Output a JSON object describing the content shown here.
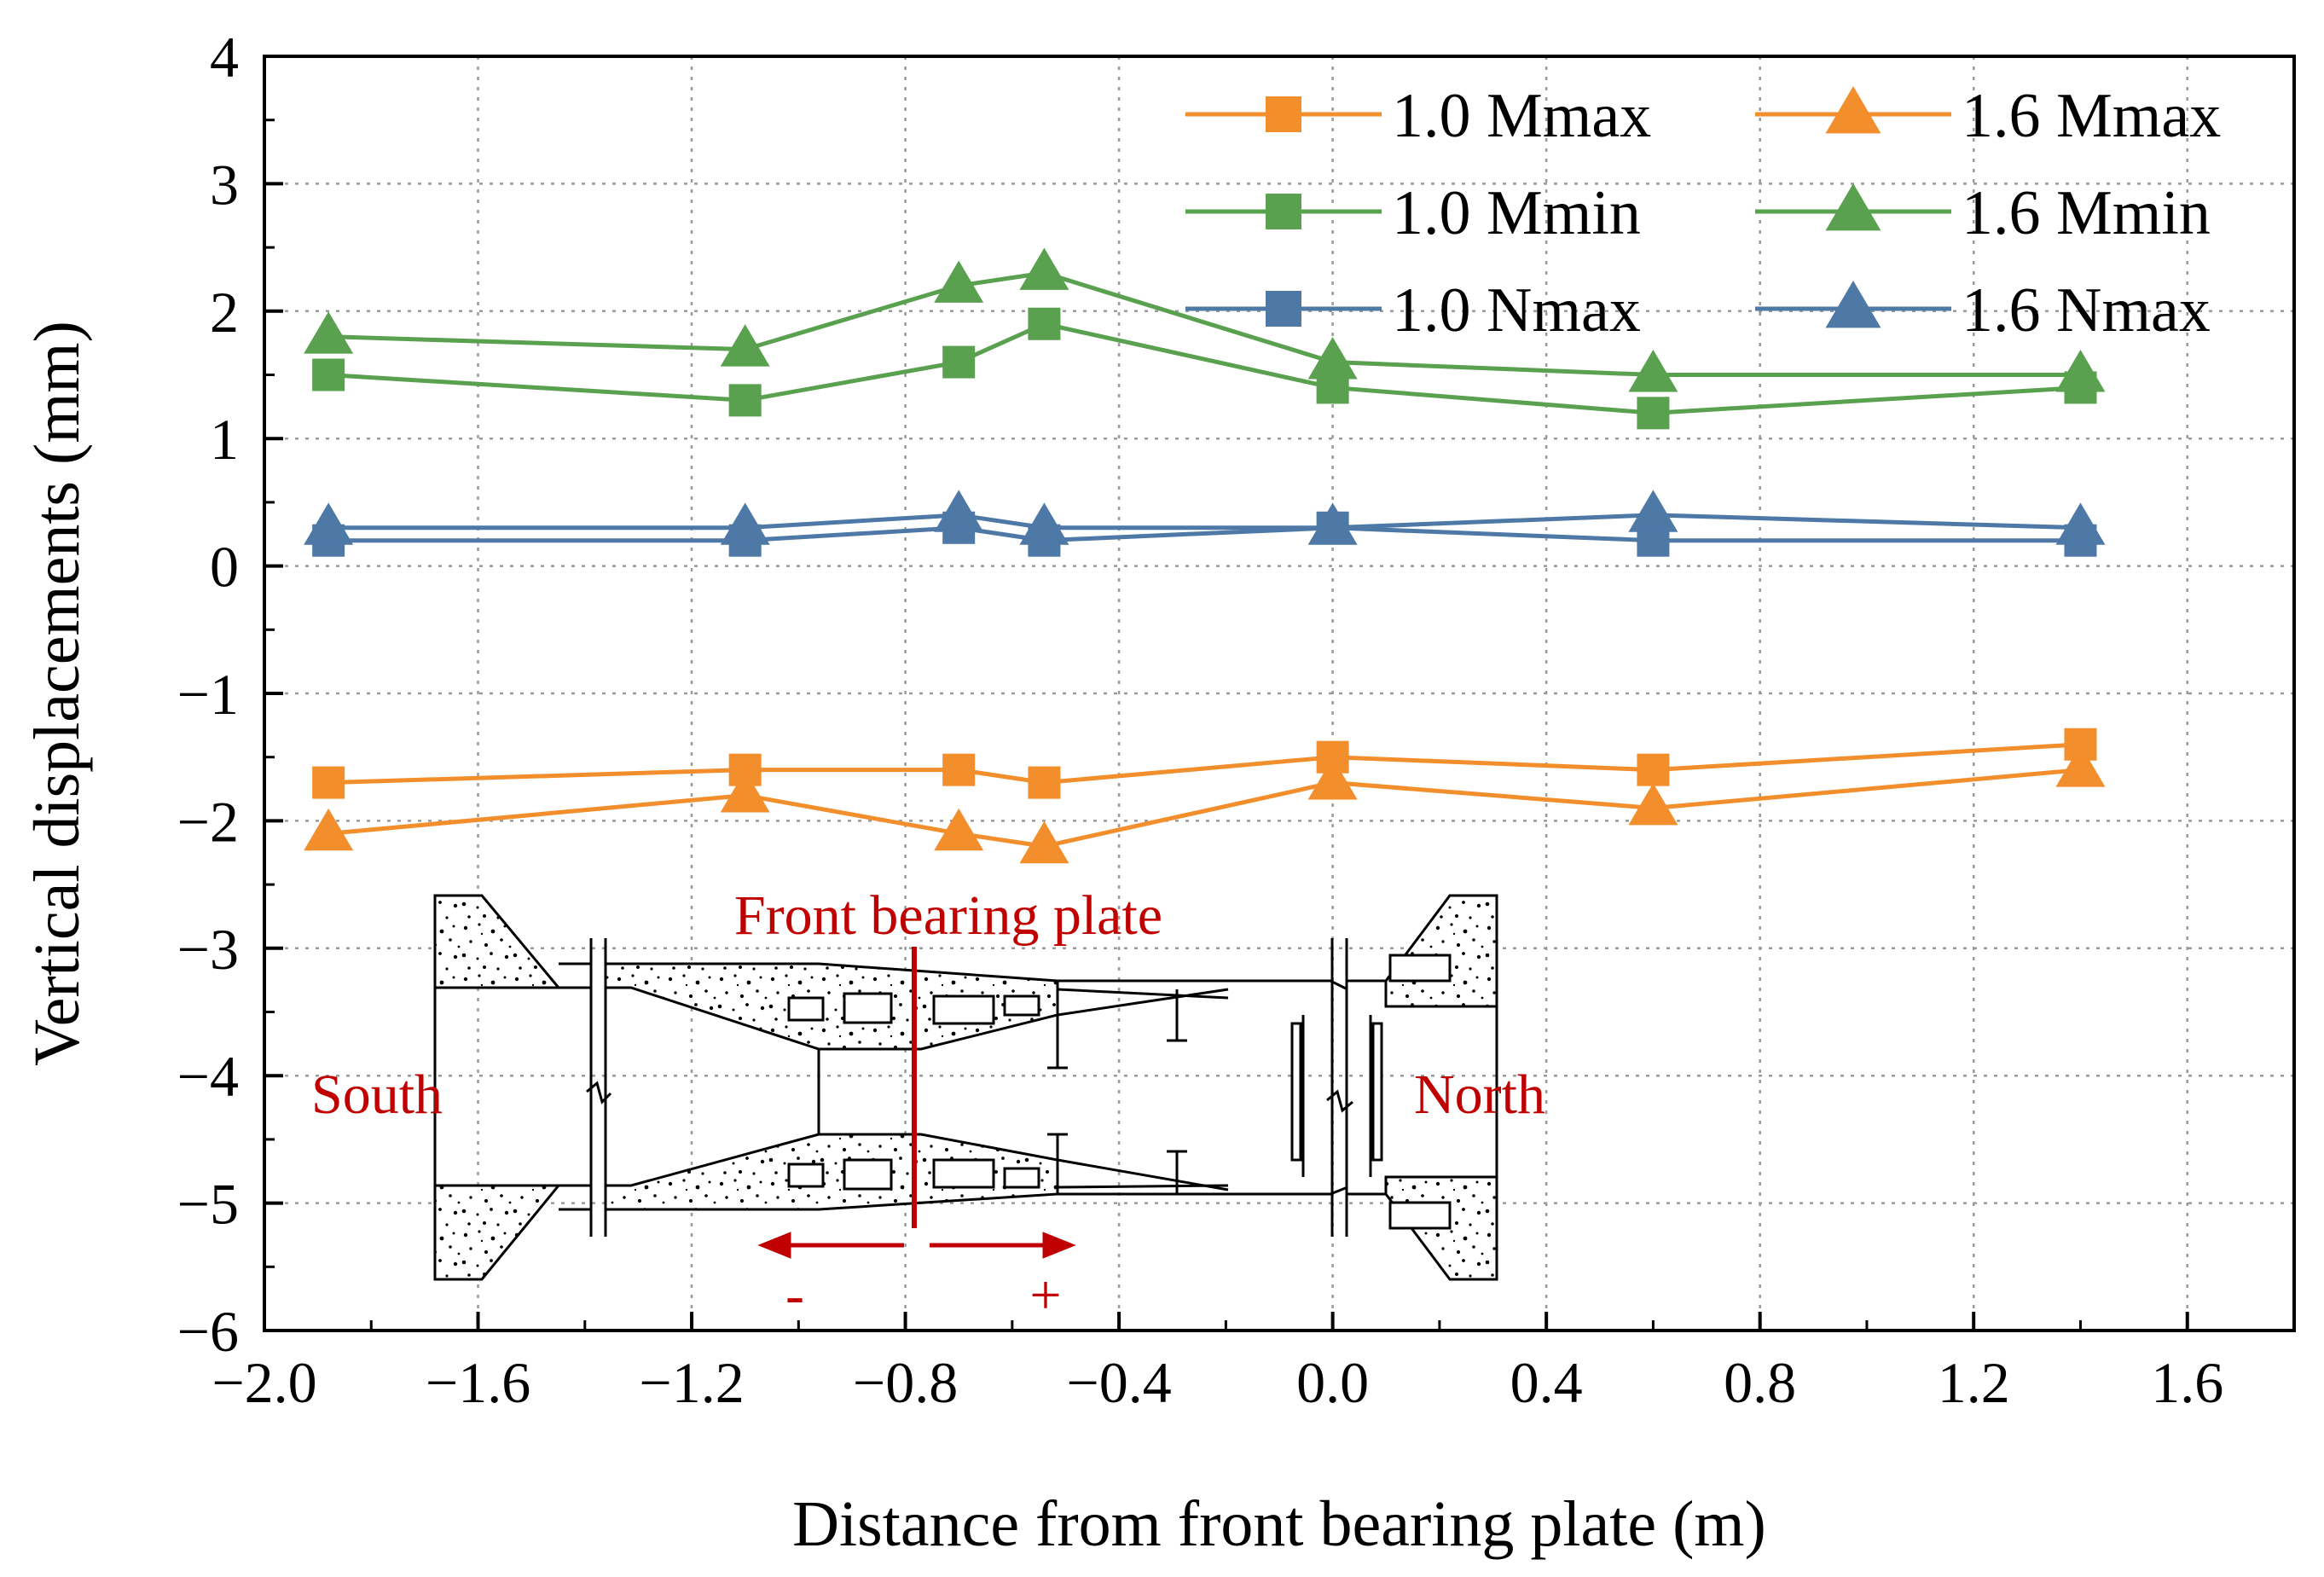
{
  "chart_data": {
    "type": "line",
    "xlabel": "Distance from front bearing plate (m)",
    "ylabel": "Vertical displacements (mm)",
    "xlim": [
      -2.0,
      1.8
    ],
    "ylim": [
      -6,
      4
    ],
    "x_ticks": [
      -2.0,
      -1.6,
      -1.2,
      -0.8,
      -0.4,
      0.0,
      0.4,
      0.8,
      1.2,
      1.6
    ],
    "x_tick_labels": [
      "−2.0",
      "−1.6",
      "−1.2",
      "−0.8",
      "−0.4",
      "0.0",
      "0.4",
      "0.8",
      "1.2",
      "1.6"
    ],
    "y_ticks": [
      -6,
      -5,
      -4,
      -3,
      -2,
      -1,
      0,
      1,
      2,
      3,
      4
    ],
    "y_tick_labels": [
      "−6",
      "−5",
      "−4",
      "−3",
      "−2",
      "−1",
      "0",
      "1",
      "2",
      "3",
      "4"
    ],
    "grid": true,
    "legend_position": "top-right",
    "x": [
      -1.88,
      -1.1,
      -0.7,
      -0.54,
      0.0,
      0.6,
      1.4
    ],
    "series": [
      {
        "name": "1.0 Mmax",
        "marker": "square",
        "color": "#f28e2b",
        "values": [
          -1.7,
          -1.6,
          -1.6,
          -1.7,
          -1.5,
          -1.6,
          -1.4
        ]
      },
      {
        "name": "1.6 Mmax",
        "marker": "triangle",
        "color": "#f28e2b",
        "values": [
          -2.1,
          -1.8,
          -2.1,
          -2.2,
          -1.7,
          -1.9,
          -1.6
        ]
      },
      {
        "name": "1.0 Mmin",
        "marker": "square",
        "color": "#59a14f",
        "values": [
          1.5,
          1.3,
          1.6,
          1.9,
          1.4,
          1.2,
          1.4
        ]
      },
      {
        "name": "1.6 Mmin",
        "marker": "triangle",
        "color": "#59a14f",
        "values": [
          1.8,
          1.7,
          2.2,
          2.3,
          1.6,
          1.5,
          1.5
        ]
      },
      {
        "name": "1.0 Nmax",
        "marker": "square",
        "color": "#4e79a7",
        "values": [
          0.2,
          0.2,
          0.3,
          0.2,
          0.3,
          0.2,
          0.2
        ]
      },
      {
        "name": "1.6 Nmax",
        "marker": "triangle",
        "color": "#4e79a7",
        "values": [
          0.3,
          0.3,
          0.4,
          0.3,
          0.3,
          0.4,
          0.3
        ]
      }
    ],
    "inset": {
      "front_bearing_plate_label": "Front bearing plate",
      "south_label": "South",
      "north_label": "North",
      "minus_label": "-",
      "plus_label": "+",
      "annotation_color": "#c00000"
    }
  }
}
